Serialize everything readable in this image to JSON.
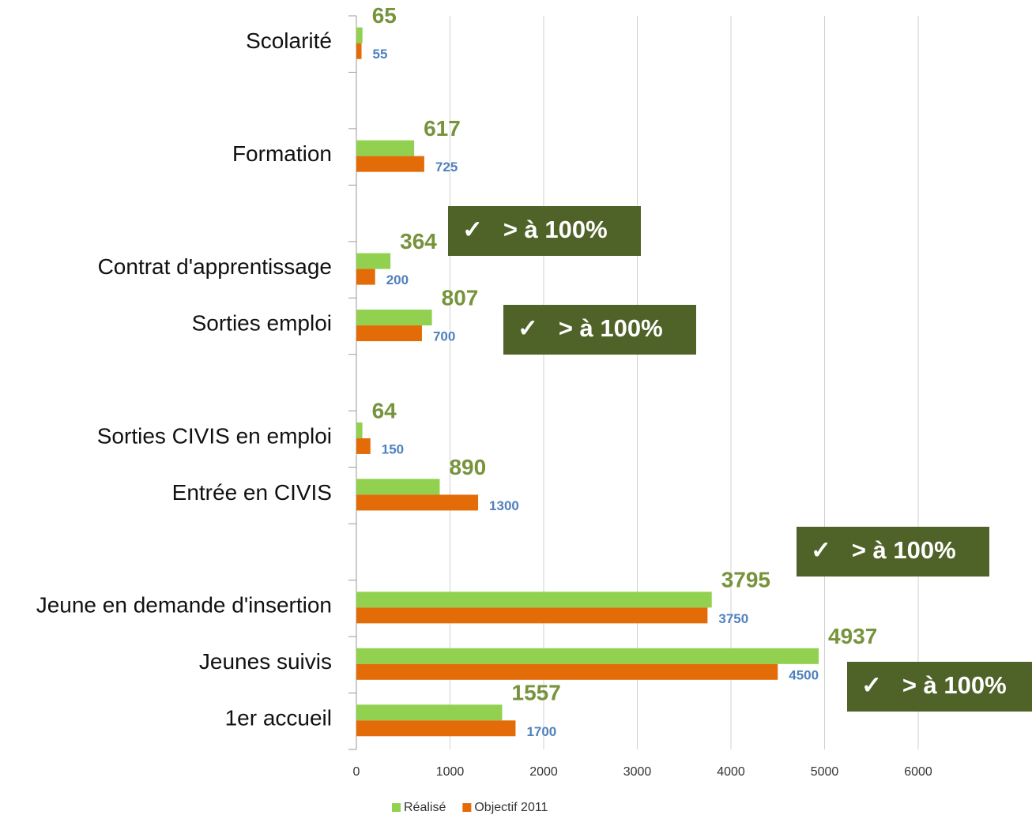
{
  "chart_data": {
    "type": "bar",
    "orientation": "horizontal",
    "categories": [
      "Scolarité",
      null,
      "Formation",
      null,
      "Contrat d'apprentissage",
      "Sorties emploi",
      null,
      "Sorties CIVIS en emploi",
      "Entrée en CIVIS",
      null,
      "Jeune en demande d'insertion",
      "Jeunes suivis",
      "1er accueil"
    ],
    "series": [
      {
        "name": "Réalisé",
        "color": "#92d050",
        "label_color": "#77933c",
        "values": [
          65,
          null,
          617,
          null,
          364,
          807,
          null,
          64,
          890,
          null,
          3795,
          4937,
          1557
        ]
      },
      {
        "name": "Objectif 2011",
        "color": "#e36c09",
        "label_color": "#4f81bd",
        "values": [
          55,
          null,
          725,
          null,
          200,
          700,
          null,
          150,
          1300,
          null,
          3750,
          4500,
          1700
        ]
      }
    ],
    "xlim": [
      0,
      6000
    ],
    "xticks": [
      0,
      1000,
      2000,
      3000,
      4000,
      5000,
      6000
    ],
    "grid": true,
    "legend": "bottom",
    "annotations": [
      "✓   > à 100%",
      "✓   > à 100%",
      "✓   > à 100%",
      "✓   > à 100%"
    ]
  }
}
